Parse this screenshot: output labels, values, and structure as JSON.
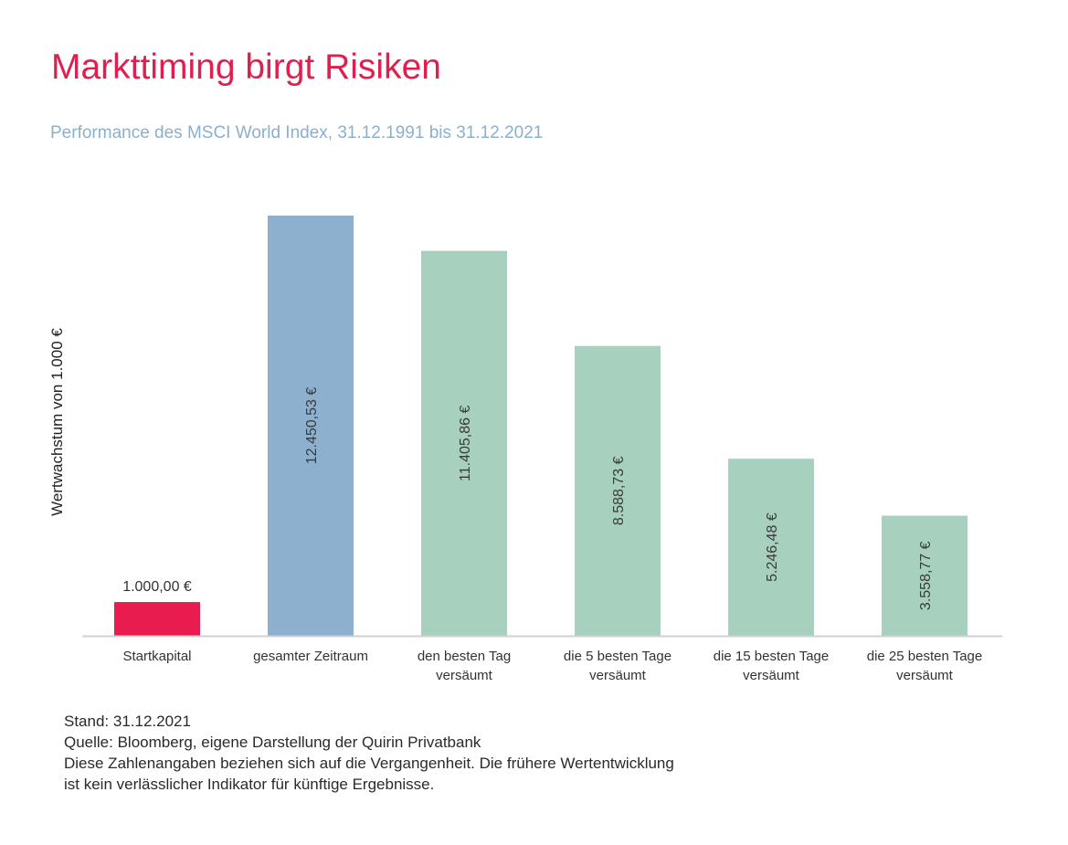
{
  "title": "Markttiming birgt Risiken",
  "subtitle": "Performance des MSCI World Index, 31.12.1991 bis 31.12.2021",
  "footer": {
    "line1": "Stand: 31.12.2021",
    "line2": "Quelle: Bloomberg, eigene Darstellung der Quirin Privatbank",
    "line3": "Diese Zahlenangaben beziehen sich auf die Vergangenheit. Die frühere Wertentwicklung",
    "line4": "ist kein verlässlicher Indikator für künftige Ergebnisse."
  },
  "colors": {
    "title": "#e01f4f",
    "subtitle": "#8ab0cc",
    "start": "#e81c4f",
    "total": "#8db0cf",
    "missed": "#a8d0bf",
    "axis": "#d0d0d0"
  },
  "chart_data": {
    "type": "bar",
    "ylabel": "Wertwachstum von 1.000 €",
    "categories": [
      [
        "Startkapital"
      ],
      [
        "gesamter Zeitraum"
      ],
      [
        "den besten Tag",
        "versäumt"
      ],
      [
        "die 5 besten Tage",
        "versäumt"
      ],
      [
        "die 15 besten Tage",
        "versäumt"
      ],
      [
        "die 25 besten Tage",
        "versäumt"
      ]
    ],
    "values": [
      1000.0,
      12450.53,
      11405.86,
      8588.73,
      5246.48,
      3558.77
    ],
    "value_labels": [
      "1.000,00 €",
      "12.450,53 €",
      "11.405,86 €",
      "8.588,73 €",
      "5.246,48 €",
      "3.558,77 €"
    ],
    "bar_colors": [
      "start",
      "total",
      "missed",
      "missed",
      "missed",
      "missed"
    ],
    "ylim": [
      0,
      12450.53
    ],
    "grid": false,
    "legend": "none"
  }
}
